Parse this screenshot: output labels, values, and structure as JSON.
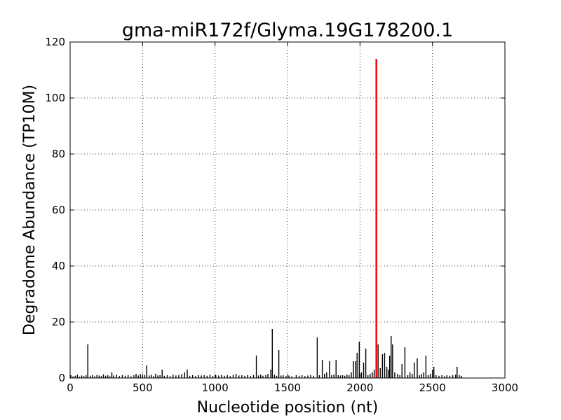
{
  "chart_data": {
    "type": "bar",
    "title": "gma-miR172f/Glyma.19G178200.1",
    "xlabel": "Nucleotide position (nt)",
    "ylabel": "Degradome Abundance (TP10M)",
    "xlim": [
      0,
      3000
    ],
    "ylim": [
      0,
      120
    ],
    "xticks": [
      0,
      500,
      1000,
      1500,
      2000,
      2500,
      3000
    ],
    "yticks": [
      0,
      20,
      40,
      60,
      80,
      100,
      120
    ],
    "xtick_labels": [
      "0",
      "500",
      "1000",
      "1500",
      "2000",
      "2500",
      "3000"
    ],
    "ytick_labels": [
      "0",
      "20",
      "40",
      "60",
      "80",
      "100",
      "120"
    ],
    "grid": true,
    "grid_style": "dotted",
    "bar_color": "#000000",
    "highlight_color": "#ff0000",
    "highlight": {
      "x": 2113,
      "y": 114
    },
    "series": [
      {
        "points": [
          [
            5,
            1
          ],
          [
            20,
            0.6
          ],
          [
            35,
            0.8
          ],
          [
            50,
            1.2
          ],
          [
            65,
            0.5
          ],
          [
            80,
            0.9
          ],
          [
            95,
            0.7
          ],
          [
            110,
            1
          ],
          [
            122,
            12
          ],
          [
            140,
            0.8
          ],
          [
            155,
            1
          ],
          [
            170,
            0.6
          ],
          [
            185,
            1.1
          ],
          [
            200,
            0.9
          ],
          [
            215,
            0.7
          ],
          [
            230,
            1.3
          ],
          [
            245,
            0.8
          ],
          [
            260,
            1
          ],
          [
            275,
            0.6
          ],
          [
            288,
            2
          ],
          [
            300,
            0.9
          ],
          [
            320,
            1.2
          ],
          [
            340,
            0.7
          ],
          [
            360,
            1
          ],
          [
            380,
            0.8
          ],
          [
            400,
            1.1
          ],
          [
            420,
            0.6
          ],
          [
            440,
            1
          ],
          [
            455,
            1.5
          ],
          [
            470,
            0.9
          ],
          [
            485,
            1.4
          ],
          [
            500,
            0.8
          ],
          [
            515,
            1
          ],
          [
            528,
            4.5
          ],
          [
            545,
            0.9
          ],
          [
            560,
            1.2
          ],
          [
            575,
            0.7
          ],
          [
            590,
            1.5
          ],
          [
            605,
            0.9
          ],
          [
            620,
            1
          ],
          [
            635,
            3
          ],
          [
            650,
            0.8
          ],
          [
            670,
            1
          ],
          [
            690,
            0.7
          ],
          [
            710,
            1.2
          ],
          [
            730,
            0.9
          ],
          [
            750,
            1
          ],
          [
            770,
            1.4
          ],
          [
            790,
            2
          ],
          [
            808,
            3
          ],
          [
            825,
            0.8
          ],
          [
            845,
            1
          ],
          [
            865,
            0.7
          ],
          [
            885,
            1.1
          ],
          [
            905,
            0.9
          ],
          [
            925,
            1
          ],
          [
            945,
            0.8
          ],
          [
            965,
            1.2
          ],
          [
            985,
            0.7
          ],
          [
            1005,
            1
          ],
          [
            1025,
            0.9
          ],
          [
            1045,
            1.1
          ],
          [
            1065,
            0.8
          ],
          [
            1085,
            1
          ],
          [
            1105,
            0.7
          ],
          [
            1125,
            1.2
          ],
          [
            1145,
            1.5
          ],
          [
            1165,
            0.9
          ],
          [
            1185,
            1
          ],
          [
            1205,
            0.8
          ],
          [
            1225,
            1.1
          ],
          [
            1245,
            0.7
          ],
          [
            1265,
            1
          ],
          [
            1285,
            8
          ],
          [
            1300,
            0.9
          ],
          [
            1315,
            1.2
          ],
          [
            1330,
            0.8
          ],
          [
            1350,
            1
          ],
          [
            1365,
            1.5
          ],
          [
            1385,
            3
          ],
          [
            1395,
            17.5
          ],
          [
            1410,
            1.2
          ],
          [
            1425,
            0.8
          ],
          [
            1440,
            10
          ],
          [
            1455,
            0.9
          ],
          [
            1470,
            1
          ],
          [
            1490,
            0.7
          ],
          [
            1510,
            0.9
          ],
          [
            1530,
            0.6
          ],
          [
            1560,
            1
          ],
          [
            1580,
            0.8
          ],
          [
            1600,
            1
          ],
          [
            1620,
            0.7
          ],
          [
            1640,
            0.9
          ],
          [
            1660,
            1
          ],
          [
            1680,
            0.8
          ],
          [
            1705,
            14.5
          ],
          [
            1720,
            1
          ],
          [
            1740,
            6.5
          ],
          [
            1755,
            1.5
          ],
          [
            1770,
            2
          ],
          [
            1790,
            6
          ],
          [
            1805,
            1
          ],
          [
            1820,
            1.2
          ],
          [
            1835,
            6.5
          ],
          [
            1850,
            1
          ],
          [
            1865,
            0.9
          ],
          [
            1880,
            1
          ],
          [
            1895,
            0.8
          ],
          [
            1910,
            1.2
          ],
          [
            1925,
            1
          ],
          [
            1940,
            2
          ],
          [
            1955,
            6
          ],
          [
            1970,
            6
          ],
          [
            1980,
            9
          ],
          [
            1995,
            13
          ],
          [
            2010,
            2
          ],
          [
            2025,
            5.5
          ],
          [
            2040,
            10.5
          ],
          [
            2055,
            1
          ],
          [
            2070,
            1.5
          ],
          [
            2085,
            2
          ],
          [
            2098,
            3
          ],
          [
            2125,
            12
          ],
          [
            2140,
            3.5
          ],
          [
            2155,
            8.5
          ],
          [
            2170,
            9
          ],
          [
            2185,
            4
          ],
          [
            2195,
            3
          ],
          [
            2205,
            8
          ],
          [
            2215,
            15
          ],
          [
            2225,
            12
          ],
          [
            2240,
            2
          ],
          [
            2260,
            1.5
          ],
          [
            2275,
            1
          ],
          [
            2290,
            5
          ],
          [
            2310,
            11
          ],
          [
            2330,
            1
          ],
          [
            2345,
            2
          ],
          [
            2360,
            1.5
          ],
          [
            2375,
            5.5
          ],
          [
            2395,
            7
          ],
          [
            2410,
            1
          ],
          [
            2425,
            1.5
          ],
          [
            2440,
            2
          ],
          [
            2455,
            8
          ],
          [
            2470,
            1
          ],
          [
            2485,
            1.5
          ],
          [
            2500,
            3
          ],
          [
            2510,
            4
          ],
          [
            2525,
            1
          ],
          [
            2545,
            0.8
          ],
          [
            2565,
            1
          ],
          [
            2585,
            0.7
          ],
          [
            2600,
            1
          ],
          [
            2620,
            0.8
          ],
          [
            2640,
            1
          ],
          [
            2660,
            1.2
          ],
          [
            2670,
            4
          ],
          [
            2685,
            1
          ],
          [
            2700,
            0.8
          ]
        ]
      }
    ]
  }
}
